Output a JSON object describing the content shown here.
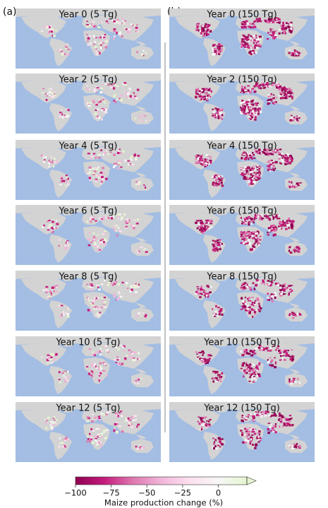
{
  "columns": [
    {
      "label": "(a)",
      "panels": [
        "Year 0 (5 Tg)",
        "Year 2 (5 Tg)",
        "Year 4 (5 Tg)",
        "Year 6 (5 Tg)",
        "Year 8 (5 Tg)",
        "Year 10 (5 Tg)",
        "Year 12 (5 Tg)"
      ]
    },
    {
      "label": "(b)",
      "panels": [
        "Year 0 (150 Tg)",
        "Year 2 (150 Tg)",
        "Year 4 (150 Tg)",
        "Year 6 (150 Tg)",
        "Year 8 (150 Tg)",
        "Year 10 (150 Tg)",
        "Year 12 (150 Tg)"
      ]
    }
  ],
  "colorbar": {
    "label": "Maize production change (%)",
    "lim": [
      -100,
      20
    ],
    "ticks": [
      {
        "value": -100,
        "label": "−100"
      },
      {
        "value": -75,
        "label": "−75"
      },
      {
        "value": -50,
        "label": "−50"
      },
      {
        "value": -25,
        "label": "−25"
      },
      0
    ],
    "colors": [
      "#8e0152",
      "#c51b7d",
      "#de77ae",
      "#f1b6da",
      "#fde0ef",
      "#f7f7f7",
      "#e6f5d0"
    ],
    "extend": "max"
  }
}
